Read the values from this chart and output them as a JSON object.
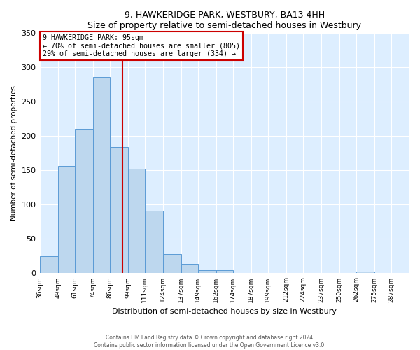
{
  "title": "9, HAWKERIDGE PARK, WESTBURY, BA13 4HH",
  "subtitle": "Size of property relative to semi-detached houses in Westbury",
  "xlabel": "Distribution of semi-detached houses by size in Westbury",
  "ylabel": "Number of semi-detached properties",
  "bar_labels": [
    "36sqm",
    "49sqm",
    "61sqm",
    "74sqm",
    "86sqm",
    "99sqm",
    "111sqm",
    "124sqm",
    "137sqm",
    "149sqm",
    "162sqm",
    "174sqm",
    "187sqm",
    "199sqm",
    "212sqm",
    "224sqm",
    "237sqm",
    "250sqm",
    "262sqm",
    "275sqm",
    "287sqm"
  ],
  "bar_values": [
    25,
    156,
    210,
    286,
    184,
    152,
    91,
    28,
    14,
    5,
    5,
    0,
    0,
    0,
    0,
    0,
    0,
    0,
    2,
    0,
    0
  ],
  "bar_color": "#BDD7EE",
  "bar_edge_color": "#5B9BD5",
  "property_line_x": 95,
  "property_line_label": "9 HAWKERIDGE PARK: 95sqm",
  "annotation_line1": "← 70% of semi-detached houses are smaller (805)",
  "annotation_line2": "29% of semi-detached houses are larger (334) →",
  "box_color": "#cc0000",
  "ylim": [
    0,
    350
  ],
  "yticks": [
    0,
    50,
    100,
    150,
    200,
    250,
    300,
    350
  ],
  "bin_edges": [
    36,
    49,
    61,
    74,
    86,
    99,
    111,
    124,
    137,
    149,
    162,
    174,
    187,
    199,
    212,
    224,
    237,
    250,
    262,
    275,
    287,
    300
  ],
  "footer1": "Contains HM Land Registry data © Crown copyright and database right 2024.",
  "footer2": "Contains public sector information licensed under the Open Government Licence v3.0.",
  "background_color": "#ffffff",
  "grid_color": "#ddeeff"
}
